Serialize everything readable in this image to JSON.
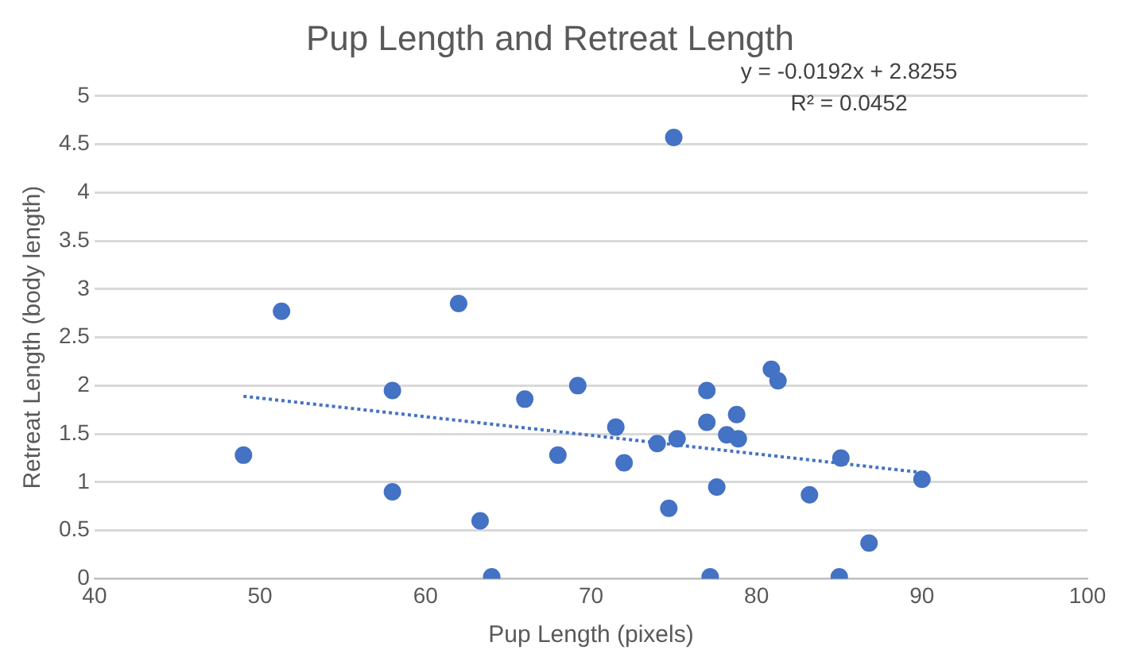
{
  "chart_data": {
    "type": "scatter",
    "title": "Pup Length and Retreat Length",
    "xlabel": "Pup Length (pixels)",
    "ylabel": "Retreat Length (body length)",
    "xlim": [
      40,
      100
    ],
    "xticks": [
      40,
      50,
      60,
      70,
      80,
      90,
      100
    ],
    "ylim": [
      0,
      5
    ],
    "yticks": [
      0,
      0.5,
      1,
      1.5,
      2,
      2.5,
      3,
      3.5,
      4,
      4.5,
      5
    ],
    "grid": "y",
    "legend": false,
    "marker": "circle",
    "annotations": [
      "y = -0.0192x + 2.8255",
      "R² = 0.0452"
    ],
    "series": [
      {
        "type": "scatter",
        "color": "#4472c4",
        "x": [
          49,
          51.3,
          58,
          58,
          62,
          63.3,
          64,
          66,
          68,
          69.2,
          71.5,
          72,
          74,
          74.7,
          75,
          75.2,
          77,
          77,
          77.2,
          77.6,
          78.2,
          78.8,
          78.9,
          80.9,
          81.3,
          83.2,
          85,
          85.1,
          86.8,
          90
        ],
        "values": [
          1.28,
          2.77,
          1.95,
          0.9,
          2.85,
          0.6,
          0.02,
          1.86,
          1.28,
          2.0,
          1.57,
          1.2,
          1.4,
          0.73,
          4.57,
          1.45,
          1.95,
          1.62,
          0.02,
          0.95,
          1.49,
          1.7,
          1.45,
          2.17,
          2.05,
          0.87,
          0.02,
          1.25,
          0.37,
          1.03
        ]
      },
      {
        "type": "line",
        "color": "#4472c4",
        "line_style": "dotted",
        "marker": "none",
        "x": [
          49,
          90
        ],
        "values": [
          1.89,
          1.1
        ]
      }
    ]
  }
}
